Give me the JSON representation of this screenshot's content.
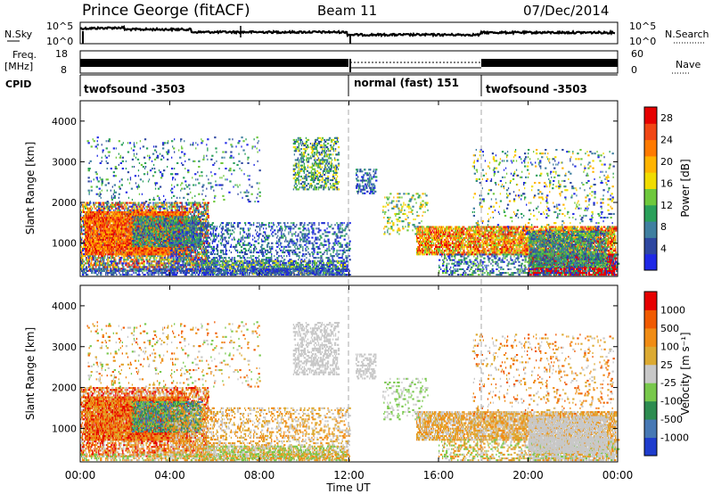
{
  "header": {
    "title": "Prince George (fitACF)",
    "beam": "Beam 11",
    "date": "07/Dec/2014"
  },
  "panels": {
    "nsky_label": "N.Sky",
    "nsky_ticks": [
      "10^5",
      "10^0"
    ],
    "nsearch_label": "N.Search",
    "freq_label_1": "Freq.",
    "freq_label_2": "[MHz]",
    "freq_ticks": [
      "18",
      "8"
    ],
    "nave_ticks": [
      "60",
      "0"
    ],
    "nave_label": "Nave",
    "cpid_label": "CPID",
    "cpid_segments": [
      "twofsound -3503",
      "normal (fast) 151",
      "twofsound -3503"
    ]
  },
  "colors": {
    "power_scale": [
      "#1e28e6",
      "#2d46a0",
      "#3f7fa0",
      "#2aa05a",
      "#6ec83c",
      "#f0dc00",
      "#ffb400",
      "#ff7a00",
      "#f04614",
      "#e60000"
    ],
    "velocity_scale": [
      "#1e3ccd",
      "#4678b4",
      "#2d8c50",
      "#78c84b",
      "#c8c8c8",
      "#dcaa32",
      "#f08c14",
      "#f05a00",
      "#e60000"
    ]
  },
  "chart_data": [
    {
      "type": "heatmap",
      "name": "power",
      "ylabel": "Slant Range [km]",
      "yticks": [
        "1000",
        "2000",
        "3000",
        "4000"
      ],
      "ylim": [
        180,
        4500
      ],
      "xlim": [
        0,
        24
      ],
      "colorbar_label": "Power [dB]",
      "colorbar_ticks": [
        "4",
        "8",
        "12",
        "16",
        "20",
        "24",
        "28"
      ],
      "colorbar_range": [
        0,
        30
      ]
    },
    {
      "type": "heatmap",
      "name": "velocity",
      "ylabel": "Slant Range [km]",
      "yticks": [
        "1000",
        "2000",
        "3000",
        "4000"
      ],
      "ylim": [
        180,
        4500
      ],
      "xlim": [
        0,
        24
      ],
      "colorbar_label": "Velocity [m s⁻¹]",
      "colorbar_ticks": [
        "1000",
        "500",
        "100",
        "25",
        "-25",
        "-100",
        "-500",
        "-1000"
      ],
      "xlabel": "Time UT",
      "xticks": [
        "00:00",
        "04:00",
        "08:00",
        "12:00",
        "16:00",
        "20:00",
        "00:00"
      ]
    }
  ]
}
